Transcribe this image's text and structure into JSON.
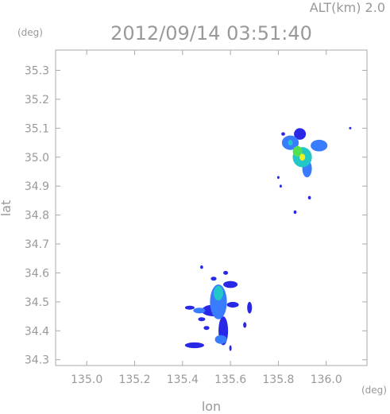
{
  "chart_data": {
    "type": "heatmap",
    "header_label": "ALT(km) 2.0",
    "title": "2012/09/14 03:51:40",
    "xlabel": "lon",
    "ylabel": "lat",
    "x_unit": "(deg)",
    "y_unit": "(deg)",
    "xlim": [
      134.87,
      136.17
    ],
    "ylim": [
      34.28,
      35.37
    ],
    "x_ticks": [
      135.0,
      135.2,
      135.4,
      135.6,
      135.8,
      136.0
    ],
    "x_tick_labels": [
      "135.0",
      "135.2",
      "135.4",
      "135.6",
      "135.8",
      "136.0"
    ],
    "y_ticks": [
      34.3,
      34.4,
      34.5,
      34.6,
      34.7,
      34.8,
      34.9,
      35.0,
      35.1,
      35.2,
      35.3
    ],
    "y_tick_labels": [
      "34.3",
      "34.4",
      "34.5",
      "34.6",
      "34.7",
      "34.8",
      "34.9",
      "35.0",
      "35.1",
      "35.2",
      "35.3"
    ],
    "grid": false,
    "colors": {
      "low": "#2828e6",
      "mid_low": "#3a7cff",
      "mid": "#22c8c8",
      "mid_high": "#50e050",
      "high": "#f0f020",
      "frame": "#aaaaaa"
    },
    "clusters": [
      {
        "blobs": [
          {
            "lon": 135.55,
            "lat": 34.5,
            "rlon": 0.035,
            "rlat": 0.06,
            "level": 2
          },
          {
            "lon": 135.55,
            "lat": 34.53,
            "rlon": 0.02,
            "rlat": 0.025,
            "level": 3
          },
          {
            "lon": 135.53,
            "lat": 34.47,
            "rlon": 0.05,
            "rlat": 0.02,
            "level": 1
          },
          {
            "lon": 135.6,
            "lat": 34.56,
            "rlon": 0.03,
            "rlat": 0.012,
            "level": 1
          },
          {
            "lon": 135.61,
            "lat": 34.49,
            "rlon": 0.025,
            "rlat": 0.01,
            "level": 1
          },
          {
            "lon": 135.57,
            "lat": 34.4,
            "rlon": 0.02,
            "rlat": 0.05,
            "level": 1
          },
          {
            "lon": 135.56,
            "lat": 34.37,
            "rlon": 0.025,
            "rlat": 0.015,
            "level": 2
          },
          {
            "lon": 135.45,
            "lat": 34.35,
            "rlon": 0.04,
            "rlat": 0.01,
            "level": 1
          },
          {
            "lon": 135.47,
            "lat": 34.47,
            "rlon": 0.025,
            "rlat": 0.01,
            "level": 2
          },
          {
            "lon": 135.43,
            "lat": 34.48,
            "rlon": 0.02,
            "rlat": 0.007,
            "level": 1
          },
          {
            "lon": 135.48,
            "lat": 34.44,
            "rlon": 0.015,
            "rlat": 0.007,
            "level": 1
          },
          {
            "lon": 135.68,
            "lat": 34.48,
            "rlon": 0.01,
            "rlat": 0.02,
            "level": 1
          },
          {
            "lon": 135.66,
            "lat": 34.42,
            "rlon": 0.007,
            "rlat": 0.01,
            "level": 1
          },
          {
            "lon": 135.5,
            "lat": 34.41,
            "rlon": 0.012,
            "rlat": 0.007,
            "level": 1
          },
          {
            "lon": 135.53,
            "lat": 34.58,
            "rlon": 0.012,
            "rlat": 0.007,
            "level": 1
          },
          {
            "lon": 135.58,
            "lat": 34.6,
            "rlon": 0.01,
            "rlat": 0.007,
            "level": 1
          },
          {
            "lon": 135.48,
            "lat": 34.62,
            "rlon": 0.006,
            "rlat": 0.006,
            "level": 1
          },
          {
            "lon": 135.6,
            "lat": 34.34,
            "rlon": 0.005,
            "rlat": 0.01,
            "level": 1
          }
        ]
      },
      {
        "blobs": [
          {
            "lon": 135.9,
            "lat": 35.0,
            "rlon": 0.04,
            "rlat": 0.035,
            "level": 3
          },
          {
            "lon": 135.85,
            "lat": 35.05,
            "rlon": 0.035,
            "rlat": 0.025,
            "level": 2
          },
          {
            "lon": 135.97,
            "lat": 35.04,
            "rlon": 0.035,
            "rlat": 0.02,
            "level": 2
          },
          {
            "lon": 135.89,
            "lat": 35.08,
            "rlon": 0.025,
            "rlat": 0.02,
            "level": 1
          },
          {
            "lon": 135.92,
            "lat": 34.96,
            "rlon": 0.02,
            "rlat": 0.03,
            "level": 2
          },
          {
            "lon": 135.88,
            "lat": 35.02,
            "rlon": 0.02,
            "rlat": 0.018,
            "level": 4
          },
          {
            "lon": 135.9,
            "lat": 35.0,
            "rlon": 0.012,
            "rlat": 0.012,
            "level": 5
          },
          {
            "lon": 135.85,
            "lat": 35.05,
            "rlon": 0.01,
            "rlat": 0.01,
            "level": 3
          },
          {
            "lon": 135.82,
            "lat": 35.08,
            "rlon": 0.008,
            "rlat": 0.006,
            "level": 1
          },
          {
            "lon": 135.93,
            "lat": 34.86,
            "rlon": 0.006,
            "rlat": 0.006,
            "level": 1
          },
          {
            "lon": 135.87,
            "lat": 34.81,
            "rlon": 0.006,
            "rlat": 0.006,
            "level": 1
          },
          {
            "lon": 136.1,
            "lat": 35.1,
            "rlon": 0.003,
            "rlat": 0.003,
            "level": 1
          },
          {
            "lon": 135.8,
            "lat": 34.93,
            "rlon": 0.003,
            "rlat": 0.005,
            "level": 1
          },
          {
            "lon": 135.81,
            "lat": 34.9,
            "rlon": 0.003,
            "rlat": 0.005,
            "level": 1
          }
        ]
      }
    ]
  }
}
